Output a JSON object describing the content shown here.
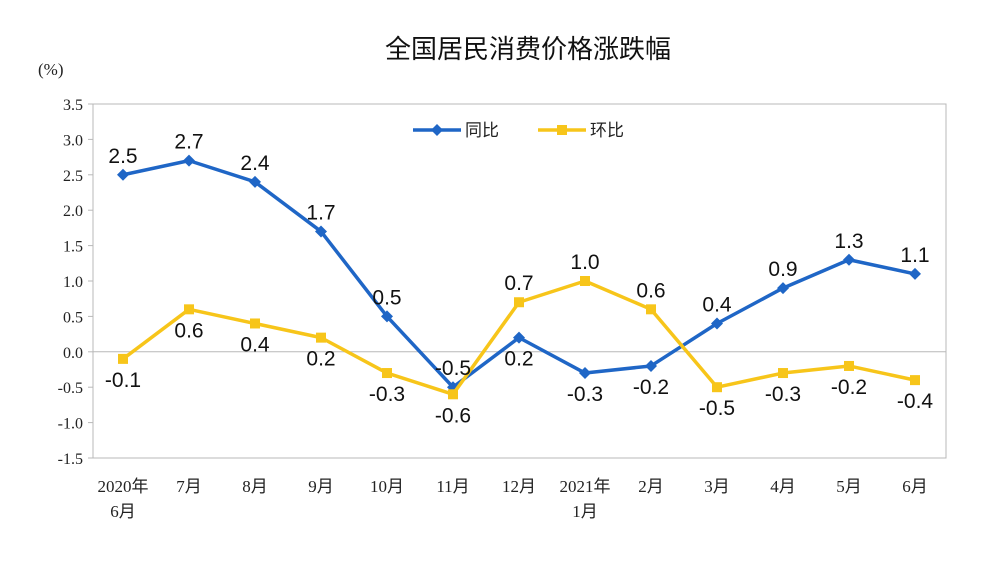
{
  "chart_data": {
    "type": "line",
    "title": "全国居民消费价格涨跌幅",
    "unit_label": "(%)",
    "categories": [
      [
        "2020年",
        "6月"
      ],
      [
        "7月"
      ],
      [
        "8月"
      ],
      [
        "9月"
      ],
      [
        "10月"
      ],
      [
        "11月"
      ],
      [
        "12月"
      ],
      [
        "2021年",
        "1月"
      ],
      [
        "2月"
      ],
      [
        "3月"
      ],
      [
        "4月"
      ],
      [
        "5月"
      ],
      [
        "6月"
      ]
    ],
    "ylim": [
      -1.5,
      3.5
    ],
    "yticks": [
      "3.5",
      "3.0",
      "2.5",
      "2.0",
      "1.5",
      "1.0",
      "0.5",
      "0.0",
      "-0.5",
      "-1.0",
      "-1.5"
    ],
    "ytick_values": [
      3.5,
      3.0,
      2.5,
      2.0,
      1.5,
      1.0,
      0.5,
      0.0,
      -0.5,
      -1.0,
      -1.5
    ],
    "grid": false,
    "legend_position": "top-center",
    "series": [
      {
        "name": "同比",
        "color": "#1F66C6",
        "marker": "diamond",
        "values": [
          2.5,
          2.7,
          2.4,
          1.7,
          0.5,
          -0.5,
          0.2,
          -0.3,
          -0.2,
          0.4,
          0.9,
          1.3,
          1.1
        ],
        "labels": [
          "2.5",
          "2.7",
          "2.4",
          "1.7",
          "0.5",
          "-0.5",
          "0.2",
          "-0.3",
          "-0.2",
          "0.4",
          "0.9",
          "1.3",
          "1.1"
        ],
        "label_side": [
          "above",
          "above",
          "above",
          "above",
          "above",
          "above",
          "below",
          "below",
          "below",
          "above",
          "above",
          "above",
          "above"
        ]
      },
      {
        "name": "环比",
        "color": "#F7C51A",
        "marker": "square",
        "values": [
          -0.1,
          0.6,
          0.4,
          0.2,
          -0.3,
          -0.6,
          0.7,
          1.0,
          0.6,
          -0.5,
          -0.3,
          -0.2,
          -0.4
        ],
        "labels": [
          "-0.1",
          "0.6",
          "0.4",
          "0.2",
          "-0.3",
          "-0.6",
          "0.7",
          "1.0",
          "0.6",
          "-0.5",
          "-0.3",
          "-0.2",
          "-0.4"
        ],
        "label_side": [
          "below",
          "below",
          "below",
          "below",
          "below",
          "below",
          "above",
          "above",
          "above",
          "below",
          "below",
          "below",
          "below"
        ]
      }
    ]
  }
}
